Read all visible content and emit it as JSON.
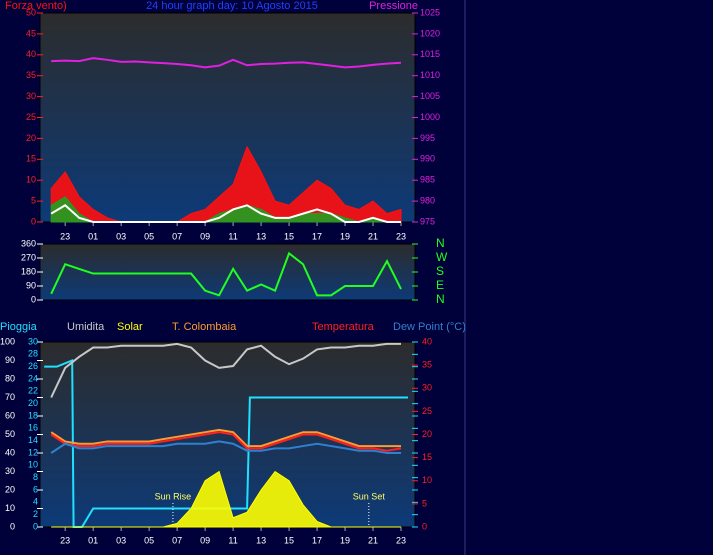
{
  "chart_data": [
    {
      "type": "line",
      "title": "24 hour graph day: 10 Agosto 2015",
      "x": [
        22,
        23,
        24,
        25,
        26,
        27,
        28,
        29,
        30,
        31,
        32,
        33,
        34,
        35,
        36,
        37,
        38,
        39,
        40,
        41,
        42,
        43,
        44,
        45,
        46,
        47
      ],
      "xlim": [
        21.2,
        48
      ],
      "xticks": [
        {
          "value": 23,
          "label": "23"
        },
        {
          "value": 25,
          "label": "01"
        },
        {
          "value": 27,
          "label": "03"
        },
        {
          "value": 29,
          "label": "05"
        },
        {
          "value": 31,
          "label": "07"
        },
        {
          "value": 33,
          "label": "09"
        },
        {
          "value": 35,
          "label": "11"
        },
        {
          "value": 37,
          "label": "13"
        },
        {
          "value": 39,
          "label": "15"
        },
        {
          "value": 41,
          "label": "17"
        },
        {
          "value": 43,
          "label": "19"
        },
        {
          "value": 45,
          "label": "21"
        },
        {
          "value": 47,
          "label": "23"
        }
      ],
      "ylim": [
        0,
        50
      ],
      "yticks": [
        0,
        5,
        10,
        15,
        20,
        25,
        30,
        35,
        40,
        45,
        50
      ],
      "y_color": "#ff2020",
      "y2lim": [
        975,
        1025
      ],
      "y2ticks": [
        975,
        980,
        985,
        990,
        995,
        1000,
        1005,
        1010,
        1015,
        1020,
        1025
      ],
      "y2_color": "#e020e0",
      "series": [
        {
          "name": "Forza vento)",
          "color": "#ff1010",
          "kind": "area",
          "values": [
            8,
            12,
            6,
            3,
            1,
            0,
            0,
            0,
            0,
            0,
            2,
            3,
            6,
            9,
            18,
            12,
            5,
            4,
            7,
            10,
            8,
            4,
            3,
            5,
            2,
            3
          ]
        },
        {
          "color": "#20a020",
          "kind": "area",
          "values": [
            4,
            6,
            2,
            0,
            0,
            0,
            0,
            0,
            0,
            0,
            0,
            0,
            2,
            3,
            4,
            3,
            1,
            1,
            2,
            2,
            2,
            1,
            0,
            1,
            0,
            0
          ]
        },
        {
          "color": "#ffffff",
          "kind": "line",
          "values": [
            2,
            4,
            1,
            0,
            0,
            0,
            0,
            0,
            0,
            0,
            0,
            0,
            1,
            3,
            4,
            2,
            1,
            1,
            2,
            3,
            2,
            0,
            0,
            1,
            0,
            0
          ]
        },
        {
          "name": "Pressione",
          "color": "#e020e0",
          "kind": "line",
          "axis": "y2",
          "values": [
            1013.5,
            1013.6,
            1013.5,
            1014.2,
            1013.8,
            1013.3,
            1013.4,
            1013.2,
            1013,
            1012.8,
            1012.5,
            1012,
            1012.4,
            1013.8,
            1012.5,
            1012.8,
            1012.9,
            1013.1,
            1013.2,
            1012.8,
            1012.4,
            1012,
            1012.2,
            1012.6,
            1012.9,
            1013.1
          ]
        }
      ]
    },
    {
      "type": "line",
      "x": [
        22,
        23,
        24,
        25,
        26,
        27,
        28,
        29,
        30,
        31,
        32,
        33,
        34,
        35,
        36,
        37,
        38,
        39,
        40,
        41,
        42,
        43,
        44,
        45,
        46,
        47
      ],
      "xlim": [
        21.2,
        48
      ],
      "ylim": [
        0,
        360
      ],
      "yticks": [
        0,
        90,
        180,
        270,
        360
      ],
      "y_color": "#ffffff",
      "y2lim": [
        0,
        360
      ],
      "y2ticks": [
        {
          "value": 360,
          "label": "N"
        },
        {
          "value": 270,
          "label": "W"
        },
        {
          "value": 180,
          "label": "S"
        },
        {
          "value": 90,
          "label": "E"
        },
        {
          "value": 0,
          "label": "N"
        }
      ],
      "y2_color": "#20ff20",
      "series": [
        {
          "color": "#20ff20",
          "kind": "line",
          "values": [
            40,
            230,
            200,
            170,
            170,
            170,
            170,
            170,
            170,
            170,
            170,
            60,
            30,
            200,
            60,
            100,
            60,
            300,
            230,
            30,
            30,
            90,
            90,
            90,
            250,
            70
          ]
        }
      ]
    },
    {
      "type": "line",
      "x": [
        22,
        23,
        24,
        25,
        26,
        27,
        28,
        29,
        30,
        31,
        32,
        33,
        34,
        35,
        36,
        37,
        38,
        39,
        40,
        41,
        42,
        43,
        44,
        45,
        46,
        47
      ],
      "xlim": [
        21.2,
        48
      ],
      "xticks": [
        {
          "value": 23,
          "label": "23"
        },
        {
          "value": 25,
          "label": "01"
        },
        {
          "value": 27,
          "label": "03"
        },
        {
          "value": 29,
          "label": "05"
        },
        {
          "value": 31,
          "label": "07"
        },
        {
          "value": 33,
          "label": "09"
        },
        {
          "value": 35,
          "label": "11"
        },
        {
          "value": 37,
          "label": "13"
        },
        {
          "value": 39,
          "label": "15"
        },
        {
          "value": 41,
          "label": "17"
        },
        {
          "value": 43,
          "label": "19"
        },
        {
          "value": 45,
          "label": "21"
        },
        {
          "value": 47,
          "label": "23"
        }
      ],
      "ylim": [
        0,
        100
      ],
      "yticks": [
        0,
        10,
        20,
        30,
        40,
        50,
        60,
        70,
        80,
        90,
        100
      ],
      "y_color": "#ffffff",
      "y3lim": [
        0,
        30
      ],
      "y3ticks": [
        0,
        2,
        4,
        6,
        8,
        10,
        12,
        14,
        16,
        18,
        20,
        22,
        24,
        26,
        28,
        30
      ],
      "y3_color": "#20e0ff",
      "y2lim": [
        0,
        40
      ],
      "y2ticks": [
        0,
        5,
        10,
        15,
        20,
        25,
        30,
        35,
        40
      ],
      "y2_color": "#ff2020",
      "series": [
        {
          "name": "Pioggia",
          "color": "#20e0ff",
          "kind": "line",
          "axis": "y3",
          "x": [
            21.5,
            22.4,
            23.5,
            23.6,
            24.2,
            25,
            36,
            36.2,
            47.5
          ],
          "values": [
            26,
            26,
            27,
            0,
            0,
            3,
            3,
            21,
            21
          ]
        },
        {
          "name": "Umidita",
          "color": "#c8c8c8",
          "kind": "line",
          "values": [
            70,
            86,
            92,
            97,
            97,
            98,
            98,
            98,
            98,
            99,
            97,
            90,
            86,
            87,
            96,
            98,
            92,
            88,
            91,
            96,
            97,
            97,
            98,
            98,
            99,
            99
          ]
        },
        {
          "name": "Solar",
          "color": "#ffff00",
          "kind": "area",
          "values": [
            0,
            0,
            0,
            0,
            0,
            0,
            0,
            0,
            0,
            2,
            10,
            25,
            30,
            5,
            8,
            20,
            30,
            25,
            12,
            3,
            0,
            0,
            0,
            0,
            0,
            0
          ]
        },
        {
          "name": "T. Colombaia",
          "color": "#ff9a30",
          "kind": "line",
          "axis": "y2",
          "values": [
            20.5,
            18.5,
            18,
            18,
            18.5,
            18.5,
            18.5,
            18.5,
            19,
            19.5,
            20,
            20.5,
            21,
            20.5,
            17.5,
            17.5,
            18.5,
            19.5,
            20.5,
            20.5,
            19.5,
            18.5,
            17.5,
            17.5,
            17.5,
            17.5
          ]
        },
        {
          "name": "Temperatura",
          "color": "#ff2020",
          "kind": "line",
          "axis": "y2",
          "values": [
            20,
            18,
            17.5,
            17.5,
            18,
            18,
            18,
            18,
            18.5,
            19,
            19.5,
            20,
            20.5,
            20,
            17,
            17,
            18,
            19,
            20,
            20,
            19,
            18,
            17,
            17,
            16.5,
            17
          ]
        },
        {
          "name": "Dew Point (°C)",
          "color": "#3080d0",
          "kind": "line",
          "axis": "y2",
          "values": [
            16,
            18,
            17,
            17,
            17.5,
            17.5,
            17.5,
            17.5,
            17.5,
            18,
            18,
            18,
            18.5,
            18,
            16.5,
            16.5,
            17,
            17,
            17.5,
            18,
            17.5,
            17,
            16.5,
            16.5,
            16,
            16
          ]
        }
      ],
      "annotations": [
        {
          "text": "Sun Rise",
          "x": 30.7
        },
        {
          "text": "Sun Set",
          "x": 44.7
        }
      ]
    }
  ]
}
